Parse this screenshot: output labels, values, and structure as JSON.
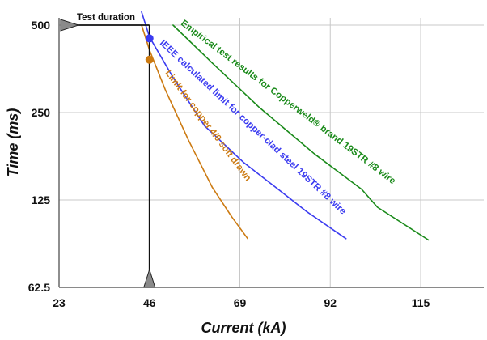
{
  "chart_data": {
    "type": "line",
    "title": "",
    "xlabel": "Current (kA)",
    "ylabel": "Time (ms)",
    "x_ticks": [
      23,
      46,
      69,
      92,
      115
    ],
    "x_tick_labels": [
      "23",
      "46",
      "69",
      "92",
      "115"
    ],
    "y_ticks": [
      62.5,
      125,
      250,
      500
    ],
    "y_tick_labels": [
      "62.5",
      "125",
      "250",
      "500"
    ],
    "xlim": [
      23,
      140
    ],
    "ylim": [
      62.5,
      530
    ],
    "y_scale": "log",
    "grid": true,
    "series": [
      {
        "name": "Limit for copper 4/0 soft drawn",
        "color": "#cc7a11",
        "x": [
          44.0,
          46.0,
          50.0,
          56.0,
          62.0,
          67.0,
          71.0
        ],
        "y": [
          500,
          410,
          300,
          200,
          138,
          109,
          92
        ]
      },
      {
        "name": "IEEE calculated limit for copper-clad steel 19STR #8 wire",
        "color": "#3b3bf0",
        "x": [
          44.0,
          46.0,
          52.0,
          60.0,
          70.0,
          80.0,
          86.0,
          96.0
        ],
        "y": [
          555,
          455,
          330,
          225,
          168,
          132,
          114,
          92
        ]
      },
      {
        "name": "Empirical test results for Copperweld® brand 19STR #8 wire",
        "color": "#1a8a1a",
        "x": [
          52.0,
          62.0,
          74.0,
          88.0,
          100.0,
          104.0,
          117.0
        ],
        "y": [
          500,
          370,
          260,
          180,
          136,
          118,
          91
        ]
      }
    ],
    "points": [
      {
        "x": 46,
        "y": 450,
        "color": "#3b3bf0",
        "series": "IEEE calculated limit for copper-clad steel 19STR #8 wire"
      },
      {
        "x": 46,
        "y": 380,
        "color": "#cc7a11",
        "series": "Limit for copper 4/0 soft drawn"
      }
    ],
    "annotations": {
      "test_duration": "Test duration",
      "test_duration_time_ms": 500,
      "test_current_ka": 46,
      "series_labels": [
        "Limit for copper 4/0 soft drawn",
        "IEEE calculated limit for copper-clad steel 19STR #8 wire",
        "Empirical test results for Copperweld® brand 19STR #8 wire"
      ]
    }
  }
}
